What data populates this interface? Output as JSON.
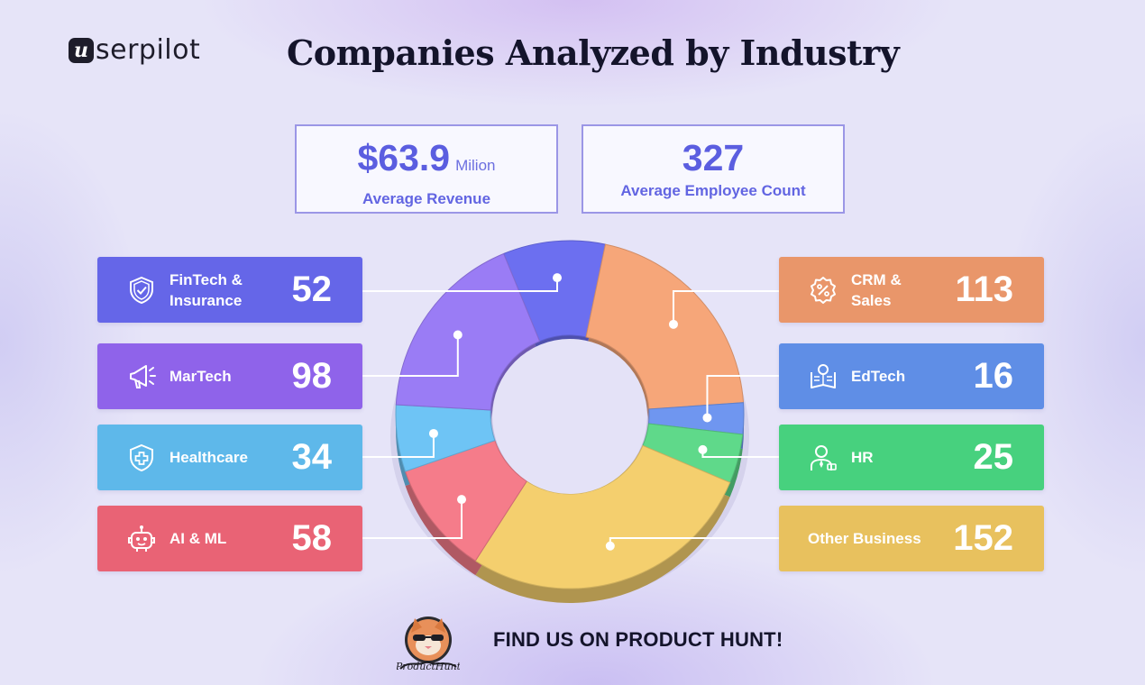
{
  "brand": {
    "mark": "u",
    "name": "serpilot"
  },
  "title": "Companies Analyzed by Industry",
  "stats": [
    {
      "value": "$63.9",
      "unit": "Milion",
      "label": "Average Revenue"
    },
    {
      "value": "327",
      "unit": "",
      "label": "Average Employee Count"
    }
  ],
  "chart_data": {
    "type": "pie",
    "style": "3d donut",
    "title": "Companies Analyzed by Industry",
    "categories": [
      "FinTech & Insurance",
      "CRM & Sales",
      "EdTech",
      "HR",
      "Other Business",
      "AI & ML",
      "Healthcare",
      "MarTech"
    ],
    "values": [
      52,
      113,
      16,
      25,
      152,
      58,
      34,
      98
    ],
    "colors": [
      "#6c6ff0",
      "#f6a679",
      "#6f96f0",
      "#5fd98a",
      "#f4cf6e",
      "#f57c8a",
      "#6ec4f5",
      "#9a7cf5"
    ]
  },
  "cards": [
    {
      "name": "FinTech &\nInsurance",
      "count": "52",
      "icon": "shield-check-icon",
      "color": "#6566e8"
    },
    {
      "name": "MarTech",
      "count": "98",
      "icon": "megaphone-icon",
      "color": "#8f63ea"
    },
    {
      "name": "Healthcare",
      "count": "34",
      "icon": "shield-cross-icon",
      "color": "#5eb8ea"
    },
    {
      "name": "AI & ML",
      "count": "58",
      "icon": "robot-icon",
      "color": "#e96375"
    },
    {
      "name": "CRM &\nSales",
      "count": "113",
      "icon": "percent-badge-icon",
      "color": "#e9966a"
    },
    {
      "name": "EdTech",
      "count": "16",
      "icon": "book-bulb-icon",
      "color": "#5f8ee6"
    },
    {
      "name": "HR",
      "count": "25",
      "icon": "employee-icon",
      "color": "#47d17e"
    },
    {
      "name": "Other Business",
      "count": "152",
      "icon": "",
      "color": "#e8c15e"
    }
  ],
  "footer": {
    "cta": "FIND US ON PRODUCT HUNT!",
    "badge": "ProductHunt",
    "badge_icon": "product-hunt-cat-icon"
  }
}
